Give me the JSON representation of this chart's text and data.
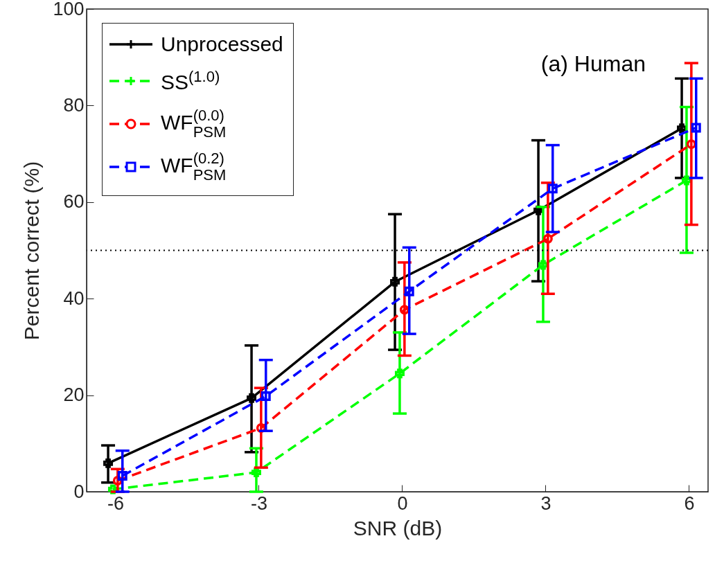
{
  "chart_data": {
    "type": "line",
    "xlabel": "SNR (dB)",
    "ylabel": "Percent correct (%)",
    "xlim": [
      -6.6,
      6.4
    ],
    "ylim": [
      0,
      100
    ],
    "xticks": [
      -6,
      -3,
      0,
      3,
      6
    ],
    "yticks": [
      0,
      20,
      40,
      60,
      80,
      100
    ],
    "grid": false,
    "legend": "top left",
    "annotations": [
      "(a) Human"
    ],
    "ref_lines": [
      {
        "axis": "y",
        "value": 50,
        "color": "#000000",
        "line_style": "dotted"
      }
    ],
    "series": [
      {
        "name": "Unprocessed",
        "color": "#000000",
        "marker": "cross",
        "line_style": "solid",
        "x": [
          -6.15,
          -3.15,
          -0.15,
          2.85,
          5.85
        ],
        "values": [
          5.9,
          19.4,
          43.5,
          58.3,
          75.3
        ],
        "errors": [
          [
            1.9,
            9.6
          ],
          [
            8.2,
            30.3
          ],
          [
            29.4,
            57.5
          ],
          [
            43.6,
            72.8
          ],
          [
            65,
            85.6
          ]
        ]
      },
      {
        "name": "SS$^{(1.0)}$",
        "color": "#00ff00",
        "marker": "cross",
        "line_style": "dashed",
        "x": [
          -6.05,
          -3.05,
          -0.05,
          2.95,
          5.95
        ],
        "values": [
          0.5,
          4,
          24.5,
          47,
          64.5
        ],
        "errors": [
          null,
          [
            0,
            9
          ],
          [
            16.2,
            33
          ],
          [
            35.2,
            59
          ],
          [
            49.5,
            79.7
          ]
        ]
      },
      {
        "name": "WF$_{PSM}$$^{(0.0)}$",
        "color": "#ff0000",
        "marker": "circle",
        "line_style": "dashed",
        "x": [
          -5.95,
          -2.95,
          0.05,
          3.05,
          6.05
        ],
        "values": [
          2.3,
          13.2,
          37.7,
          52.4,
          72
        ],
        "errors": [
          [
            0,
            4.7
          ],
          [
            5,
            21.5
          ],
          [
            28.2,
            47.5
          ],
          [
            41,
            64
          ],
          [
            55.3,
            88.8
          ]
        ]
      },
      {
        "name": "WF$_{PSM}$$^{(0.2)}$",
        "color": "#0000ff",
        "marker": "square",
        "line_style": "dashed",
        "x": [
          -5.85,
          -2.85,
          0.15,
          3.15,
          6.15
        ],
        "values": [
          3.3,
          19.8,
          41.5,
          62.8,
          75.4
        ],
        "errors": [
          [
            0,
            8.5
          ],
          [
            12.6,
            27.3
          ],
          [
            32.7,
            50.6
          ],
          [
            53.8,
            71.8
          ],
          [
            65,
            85.6
          ]
        ]
      }
    ]
  }
}
